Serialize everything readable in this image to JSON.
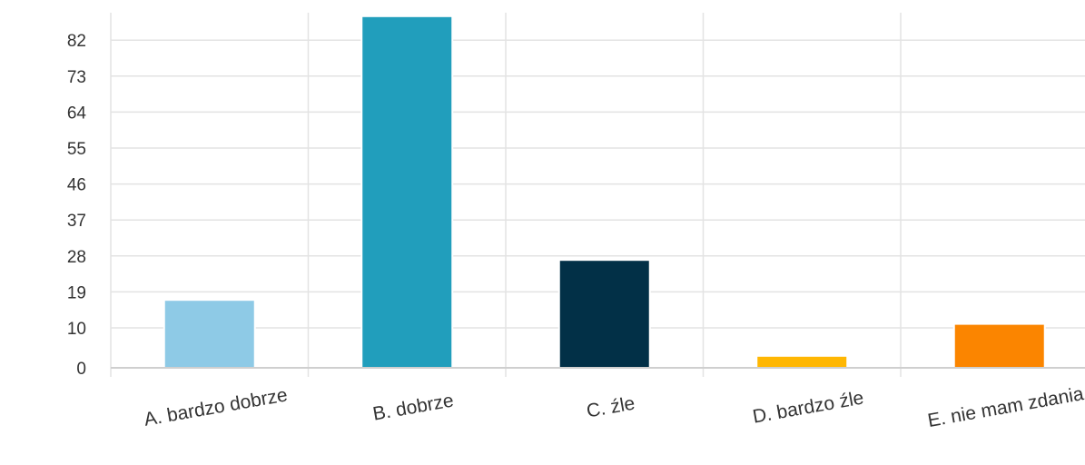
{
  "chart_data": {
    "type": "bar",
    "title": "",
    "xlabel": "",
    "ylabel": "",
    "categories": [
      "A. bardzo dobrze",
      "B. dobrze",
      "C. źle",
      "D. bardzo źle",
      "E. nie mam zdania"
    ],
    "values": [
      17,
      88,
      27,
      3,
      11
    ],
    "colors": [
      "#8ecae6",
      "#219ebc",
      "#023047",
      "#ffb703",
      "#fb8500"
    ],
    "yticks": [
      0,
      10,
      19,
      28,
      37,
      46,
      55,
      64,
      73,
      82
    ],
    "ylim": [
      0,
      88
    ],
    "grid": true,
    "legend": "none"
  }
}
